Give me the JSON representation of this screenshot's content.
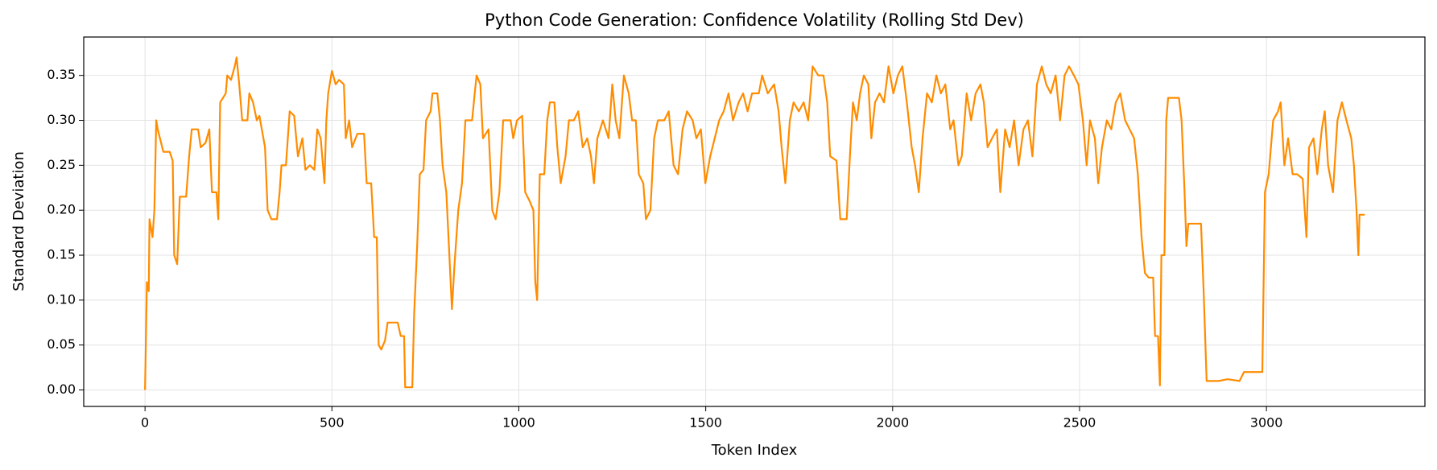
{
  "chart_data": {
    "type": "line",
    "title": "Python Code Generation: Confidence Volatility (Rolling Std Dev)",
    "xlabel": "Token Index",
    "ylabel": "Standard Deviation",
    "xlim": [
      -164,
      3424
    ],
    "ylim": [
      -0.0183,
      0.3927
    ],
    "xticks": [
      0,
      500,
      1000,
      1500,
      2000,
      2500,
      3000
    ],
    "yticks": [
      {
        "value": 0,
        "label": "0.00"
      },
      0.05,
      {
        "value": 0.1,
        "label": "0.10"
      },
      0.15,
      {
        "value": 0.2,
        "label": "0.20"
      },
      0.25,
      {
        "value": 0.3,
        "label": "0.30"
      },
      0.35
    ],
    "grid": true,
    "series": [
      {
        "name": "Rolling Std Dev",
        "color": "#ff8c00",
        "x": [
          0,
          5,
          10,
          12,
          20,
          25,
          30,
          34,
          49,
          66,
          74,
          78,
          86,
          93,
          110,
          118,
          125,
          142,
          149,
          162,
          172,
          179,
          191,
          196,
          201,
          216,
          220,
          230,
          240,
          245,
          252,
          260,
          274,
          279,
          289,
          299,
          306,
          321,
          328,
          338,
          353,
          360,
          365,
          377,
          387,
          399,
          409,
          421,
          429,
          441,
          453,
          461,
          470,
          480,
          485,
          490,
          500,
          510,
          519,
          532,
          537,
          546,
          554,
          568,
          586,
          593,
          605,
          613,
          620,
          625,
          632,
          642,
          649,
          676,
          684,
          693,
          696,
          715,
          720,
          728,
          735,
          745,
          752,
          764,
          769,
          782,
          789,
          796,
          806,
          813,
          821,
          828,
          838,
          848,
          857,
          875,
          882,
          887,
          897,
          904,
          919,
          929,
          938,
          948,
          958,
          978,
          985,
          995,
          1009,
          1017,
          1029,
          1039,
          1044,
          1049,
          1056,
          1068,
          1076,
          1083,
          1095,
          1103,
          1112,
          1125,
          1134,
          1147,
          1159,
          1171,
          1183,
          1193,
          1201,
          1210,
          1225,
          1240,
          1250,
          1259,
          1269,
          1281,
          1294,
          1303,
          1313,
          1321,
          1333,
          1340,
          1352,
          1362,
          1372,
          1389,
          1401,
          1414,
          1426,
          1438,
          1450,
          1465,
          1475,
          1487,
          1499,
          1512,
          1524,
          1536,
          1548,
          1561,
          1573,
          1588,
          1600,
          1612,
          1624,
          1642,
          1651,
          1666,
          1683,
          1695,
          1703,
          1713,
          1725,
          1735,
          1749,
          1762,
          1774,
          1786,
          1801,
          1815,
          1825,
          1833,
          1850,
          1860,
          1877,
          1887,
          1894,
          1904,
          1913,
          1923,
          1935,
          1943,
          1953,
          1965,
          1977,
          1989,
          2002,
          2014,
          2026,
          2038,
          2051,
          2060,
          2070,
          2080,
          2092,
          2105,
          2117,
          2129,
          2141,
          2154,
          2163,
          2176,
          2185,
          2198,
          2210,
          2222,
          2235,
          2244,
          2254,
          2266,
          2279,
          2288,
          2301,
          2313,
          2325,
          2337,
          2350,
          2362,
          2374,
          2386,
          2399,
          2411,
          2423,
          2436,
          2448,
          2460,
          2472,
          2485,
          2497,
          2509,
          2519,
          2528,
          2541,
          2550,
          2560,
          2573,
          2585,
          2597,
          2609,
          2622,
          2634,
          2646,
          2656,
          2666,
          2675,
          2685,
          2697,
          2702,
          2710,
          2715,
          2719,
          2727,
          2732,
          2737,
          2766,
          2773,
          2781,
          2786,
          2791,
          2825,
          2832,
          2840,
          2859,
          2872,
          2896,
          2928,
          2940,
          2989,
          2996,
          3006,
          3018,
          3031,
          3038,
          3048,
          3058,
          3070,
          3082,
          3097,
          3107,
          3114,
          3126,
          3136,
          3148,
          3156,
          3165,
          3178,
          3190,
          3202,
          3214,
          3227,
          3234,
          3241,
          3246,
          3249,
          3263
        ],
        "values": [
          0,
          0.12,
          0.11,
          0.19,
          0.17,
          0.2,
          0.3,
          0.29,
          0.265,
          0.265,
          0.255,
          0.15,
          0.14,
          0.215,
          0.215,
          0.26,
          0.29,
          0.29,
          0.27,
          0.275,
          0.29,
          0.22,
          0.22,
          0.19,
          0.32,
          0.33,
          0.35,
          0.345,
          0.36,
          0.37,
          0.34,
          0.3,
          0.3,
          0.33,
          0.32,
          0.3,
          0.305,
          0.27,
          0.2,
          0.19,
          0.19,
          0.22,
          0.25,
          0.25,
          0.31,
          0.305,
          0.26,
          0.28,
          0.245,
          0.25,
          0.245,
          0.29,
          0.28,
          0.23,
          0.3,
          0.33,
          0.355,
          0.34,
          0.345,
          0.34,
          0.28,
          0.3,
          0.27,
          0.285,
          0.285,
          0.23,
          0.23,
          0.17,
          0.17,
          0.05,
          0.045,
          0.055,
          0.075,
          0.075,
          0.06,
          0.06,
          0.003,
          0.003,
          0.085,
          0.16,
          0.24,
          0.245,
          0.3,
          0.31,
          0.33,
          0.33,
          0.3,
          0.25,
          0.22,
          0.16,
          0.09,
          0.14,
          0.2,
          0.23,
          0.3,
          0.3,
          0.33,
          0.35,
          0.34,
          0.28,
          0.29,
          0.2,
          0.19,
          0.22,
          0.3,
          0.3,
          0.28,
          0.3,
          0.305,
          0.22,
          0.21,
          0.2,
          0.12,
          0.1,
          0.24,
          0.24,
          0.3,
          0.32,
          0.32,
          0.27,
          0.23,
          0.26,
          0.3,
          0.3,
          0.31,
          0.27,
          0.28,
          0.26,
          0.23,
          0.28,
          0.3,
          0.28,
          0.34,
          0.3,
          0.28,
          0.35,
          0.33,
          0.3,
          0.3,
          0.24,
          0.23,
          0.19,
          0.2,
          0.28,
          0.3,
          0.3,
          0.31,
          0.25,
          0.24,
          0.29,
          0.31,
          0.3,
          0.28,
          0.29,
          0.23,
          0.26,
          0.28,
          0.3,
          0.31,
          0.33,
          0.3,
          0.32,
          0.33,
          0.31,
          0.33,
          0.33,
          0.35,
          0.33,
          0.34,
          0.31,
          0.27,
          0.23,
          0.3,
          0.32,
          0.31,
          0.32,
          0.3,
          0.36,
          0.35,
          0.35,
          0.32,
          0.26,
          0.255,
          0.19,
          0.19,
          0.27,
          0.32,
          0.3,
          0.33,
          0.35,
          0.34,
          0.28,
          0.32,
          0.33,
          0.32,
          0.36,
          0.33,
          0.35,
          0.36,
          0.32,
          0.27,
          0.25,
          0.22,
          0.28,
          0.33,
          0.32,
          0.35,
          0.33,
          0.34,
          0.29,
          0.3,
          0.25,
          0.26,
          0.33,
          0.3,
          0.33,
          0.34,
          0.32,
          0.27,
          0.28,
          0.29,
          0.22,
          0.29,
          0.27,
          0.3,
          0.25,
          0.29,
          0.3,
          0.26,
          0.34,
          0.36,
          0.34,
          0.33,
          0.35,
          0.3,
          0.35,
          0.36,
          0.35,
          0.34,
          0.3,
          0.25,
          0.3,
          0.28,
          0.23,
          0.27,
          0.3,
          0.29,
          0.32,
          0.33,
          0.3,
          0.29,
          0.28,
          0.24,
          0.17,
          0.13,
          0.125,
          0.125,
          0.06,
          0.06,
          0.005,
          0.15,
          0.15,
          0.3,
          0.325,
          0.325,
          0.3,
          0.22,
          0.16,
          0.185,
          0.185,
          0.11,
          0.01,
          0.01,
          0.01,
          0.012,
          0.01,
          0.02,
          0.02,
          0.22,
          0.24,
          0.3,
          0.31,
          0.32,
          0.25,
          0.28,
          0.24,
          0.24,
          0.235,
          0.17,
          0.27,
          0.28,
          0.24,
          0.29,
          0.31,
          0.25,
          0.22,
          0.3,
          0.32,
          0.3,
          0.28,
          0.25,
          0.2,
          0.15,
          0.195,
          0.195
        ]
      }
    ]
  }
}
